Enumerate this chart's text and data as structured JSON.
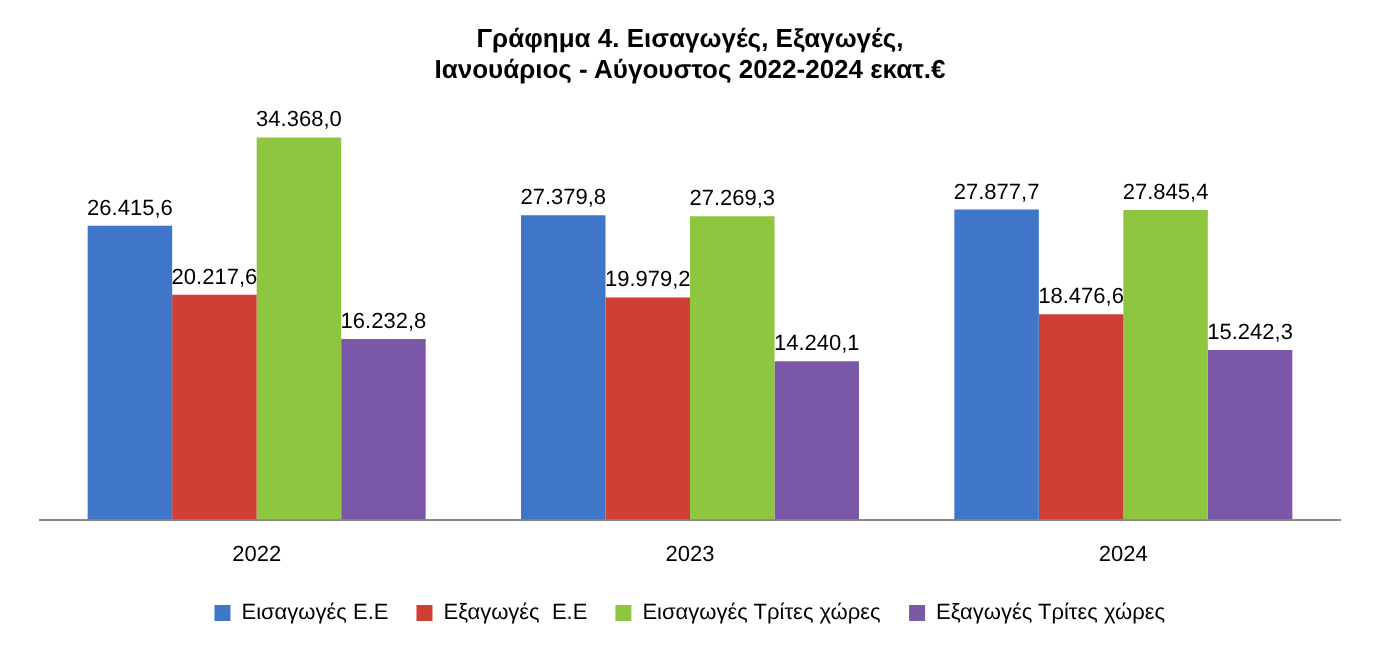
{
  "chart_data": {
    "type": "bar",
    "title": [
      "Γράφημα 4. Εισαγωγές, Εξαγωγές,",
      "Ιανουάριος - Αύγουστος 2022-2024 εκατ.€"
    ],
    "categories": [
      "2022",
      "2023",
      "2024"
    ],
    "legend": "bottom",
    "series": [
      {
        "name": "Εισαγωγές Ε.Ε",
        "color": "#3f76c9",
        "values": [
          26415.6,
          27379.8,
          27877.7
        ],
        "value_labels": [
          "26.415,6",
          "27.379,8",
          "27.877,7"
        ]
      },
      {
        "name": "Εξαγωγές  Ε.Ε",
        "color": "#cf3f35",
        "values": [
          20217.6,
          19979.2,
          18476.6
        ],
        "value_labels": [
          "20.217,6",
          "19.979,2",
          "18.476,6"
        ]
      },
      {
        "name": "Εισαγωγές Τρίτες χώρες",
        "color": "#8fc63f",
        "values": [
          34368.0,
          27269.3,
          27845.4
        ],
        "value_labels": [
          "34.368,0",
          "27.269,3",
          "27.845,4"
        ]
      },
      {
        "name": "Εξαγωγές Τρίτες χώρες",
        "color": "#7b57a8",
        "values": [
          16232.8,
          14240.1,
          15242.3
        ],
        "value_labels": [
          "16.232,8",
          "14.240,1",
          "15.242,3"
        ]
      }
    ]
  }
}
